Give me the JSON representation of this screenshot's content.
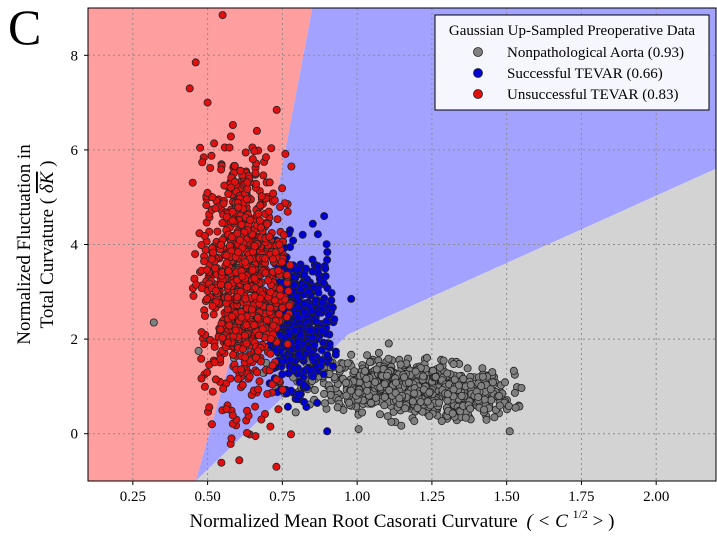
{
  "panel_label": "C",
  "chart_data": {
    "type": "scatter",
    "xlabel": "Normalized Mean Root Casorati Curvature (< C^{1/2} >)",
    "xlabel_text": "Normalized Mean Root Casorati Curvature",
    "xlabel_math": "( < C",
    "xlabel_sup": "1/2",
    "xlabel_end": " > )",
    "ylabel_line1": "Normalized Fluctuation in",
    "ylabel_line2": "Total Curvature (",
    "ylabel_math": "δK",
    "ylabel_end": ")",
    "xlim": [
      0.1,
      2.2
    ],
    "ylim": [
      -1.0,
      9.0
    ],
    "xticks": [
      "0.25",
      "0.50",
      "0.75",
      "1.00",
      "1.25",
      "1.50",
      "1.75",
      "2.00"
    ],
    "xtick_values": [
      0.25,
      0.5,
      0.75,
      1.0,
      1.25,
      1.5,
      1.75,
      2.0
    ],
    "yticks": [
      "0",
      "2",
      "4",
      "6",
      "8"
    ],
    "ytick_values": [
      0,
      2,
      4,
      6,
      8
    ],
    "grid": true,
    "legend": {
      "title": "Gaussian Up-Sampled Preoperative Data",
      "placement": "top-right",
      "entries": [
        {
          "label": "Nonpathological Aorta (0.93)",
          "color": "#808080"
        },
        {
          "label": "Successful TEVAR (0.66)",
          "color": "#0000d0"
        },
        {
          "label": "Unsuccessful TEVAR (0.83)",
          "color": "#e01010"
        }
      ]
    },
    "regions": [
      {
        "name": "Unsuccessful TEVAR",
        "color": "#ff9e9e",
        "polygon": [
          [
            0.1,
            -1.0
          ],
          [
            0.46,
            -1.0
          ],
          [
            0.73,
            5.0
          ],
          [
            0.85,
            9.0
          ],
          [
            0.1,
            9.0
          ]
        ]
      },
      {
        "name": "Successful TEVAR",
        "color": "#a3a3ff",
        "polygon": [
          [
            0.46,
            -1.0
          ],
          [
            0.73,
            5.0
          ],
          [
            0.85,
            9.0
          ],
          [
            2.2,
            9.0
          ],
          [
            2.2,
            5.6
          ],
          [
            0.97,
            2.1
          ]
        ]
      },
      {
        "name": "Nonpathological Aorta",
        "color": "#d3d3d3",
        "polygon": [
          [
            0.46,
            -1.0
          ],
          [
            0.97,
            2.1
          ],
          [
            2.2,
            5.6
          ],
          [
            2.2,
            -1.0
          ]
        ]
      }
    ],
    "clusters": [
      {
        "series": "Nonpathological Aorta",
        "count": 850,
        "center": [
          1.18,
          0.95
        ],
        "spread": [
          0.17,
          0.28
        ],
        "tilt": -0.55,
        "xrange": [
          0.5,
          1.55
        ],
        "yrange": [
          0.0,
          2.0
        ]
      },
      {
        "series": "Successful TEVAR",
        "count": 520,
        "center": [
          0.8,
          2.4
        ],
        "spread": [
          0.06,
          0.7
        ],
        "tilt": 0.0,
        "xrange": [
          0.7,
          0.93
        ],
        "yrange": [
          0.5,
          4.6
        ]
      },
      {
        "series": "Unsuccessful TEVAR",
        "count": 950,
        "center": [
          0.62,
          3.3
        ],
        "spread": [
          0.07,
          1.3
        ],
        "tilt": 0.0,
        "xrange": [
          0.45,
          0.78
        ],
        "yrange": [
          -0.7,
          7.8
        ]
      }
    ],
    "outliers": [
      {
        "series": "Nonpathological Aorta",
        "x": 0.32,
        "y": 2.35
      },
      {
        "series": "Nonpathological Aorta",
        "x": 1.53,
        "y": 0.55
      },
      {
        "series": "Nonpathological Aorta",
        "x": 1.51,
        "y": 0.05
      },
      {
        "series": "Nonpathological Aorta",
        "x": 0.47,
        "y": 1.75
      },
      {
        "series": "Successful TEVAR",
        "x": 0.89,
        "y": 4.6
      },
      {
        "series": "Successful TEVAR",
        "x": 0.98,
        "y": 2.85
      },
      {
        "series": "Successful TEVAR",
        "x": 0.9,
        "y": 0.05
      },
      {
        "series": "Successful TEVAR",
        "x": 0.85,
        "y": 1.6
      },
      {
        "series": "Unsuccessful TEVAR",
        "x": 0.55,
        "y": 8.85
      },
      {
        "series": "Unsuccessful TEVAR",
        "x": 0.5,
        "y": 7.0
      },
      {
        "series": "Unsuccessful TEVAR",
        "x": 0.44,
        "y": 7.3
      },
      {
        "series": "Unsuccessful TEVAR",
        "x": 0.46,
        "y": 7.85
      },
      {
        "series": "Unsuccessful TEVAR",
        "x": 0.78,
        "y": 5.65
      },
      {
        "series": "Unsuccessful TEVAR",
        "x": 0.73,
        "y": -0.7
      },
      {
        "series": "Unsuccessful TEVAR",
        "x": 0.66,
        "y": -0.05
      },
      {
        "series": "Unsuccessful TEVAR",
        "x": 0.58,
        "y": -0.1
      },
      {
        "series": "Unsuccessful TEVAR",
        "x": 0.68,
        "y": 0.3
      },
      {
        "series": "Unsuccessful TEVAR",
        "x": 0.71,
        "y": 0.15
      }
    ]
  }
}
